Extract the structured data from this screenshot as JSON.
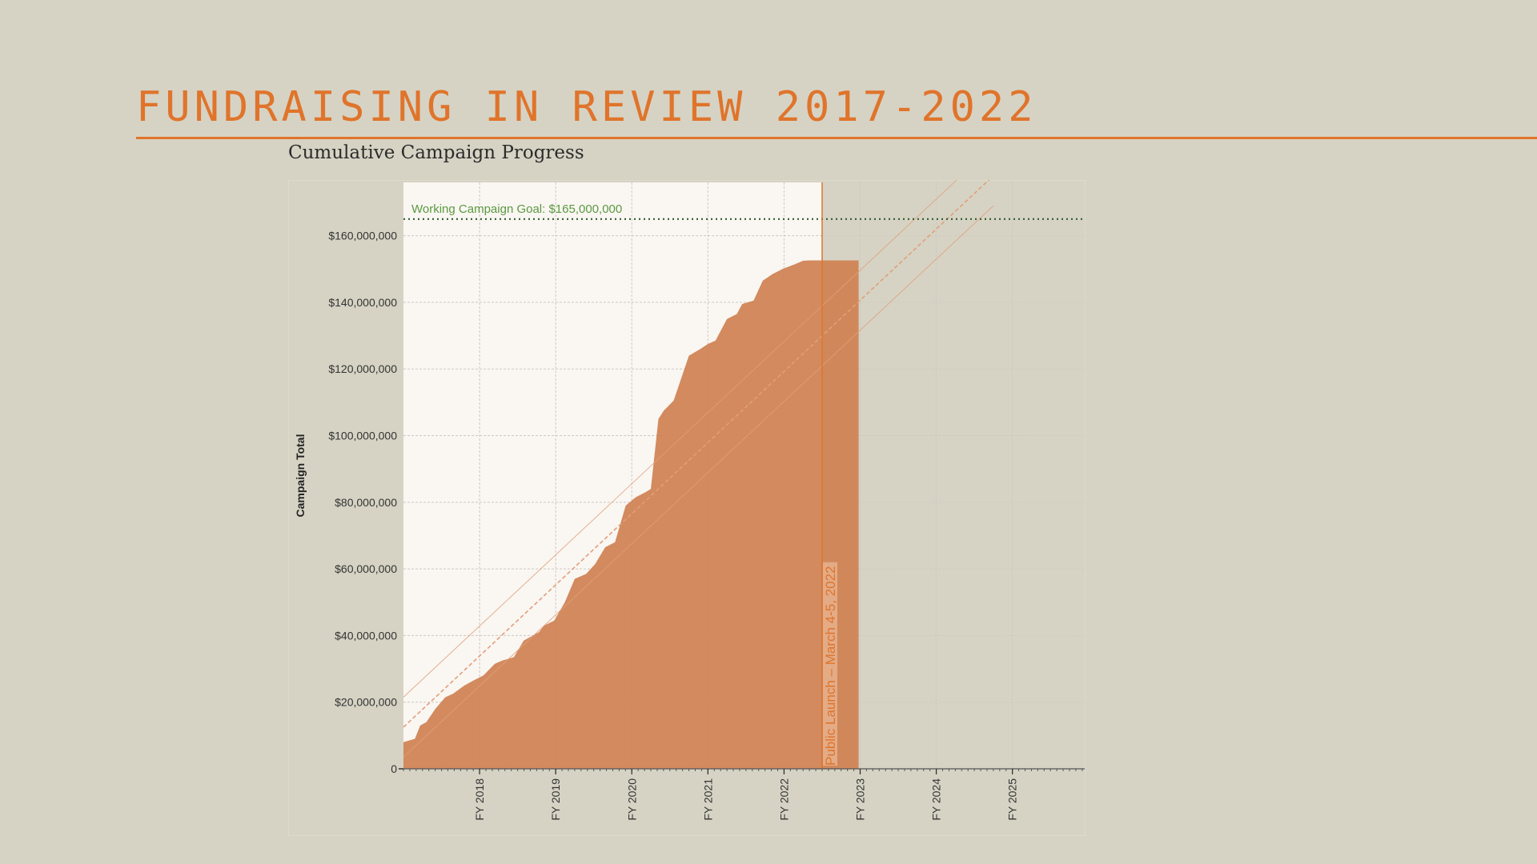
{
  "header": {
    "title": "FUNDRAISING IN REVIEW 2017-2022",
    "subtitle": "Cumulative Campaign Progress"
  },
  "colors": {
    "accent": "#e0742b",
    "area_fill": "#d08455",
    "goal_line": "#2f5a2f",
    "goal_label": "#5a9a40",
    "background": "#d6d3c4",
    "plot_background": "#faf6f2"
  },
  "chart_data": {
    "type": "area",
    "title": "",
    "xlabel": "",
    "ylabel": "Campaign Total",
    "x_ticks": [
      "FY 2018",
      "FY 2019",
      "FY 2020",
      "FY 2021",
      "FY 2022",
      "FY 2023",
      "FY 2024",
      "FY 2025"
    ],
    "y_ticks": [
      "0",
      "$20,000,000",
      "$40,000,000",
      "$60,000,000",
      "$80,000,000",
      "$100,000,000",
      "$120,000,000",
      "$140,000,000",
      "$160,000,000"
    ],
    "xlim": [
      2017.0,
      2025.95
    ],
    "ylim": [
      0,
      176000000
    ],
    "grid": true,
    "goal": {
      "label": "Working Campaign Goal: $165,000,000",
      "value": 165000000
    },
    "public_launch": {
      "label": "Public Launch – March 4-5, 2022",
      "x": 2022.5
    },
    "series": [
      {
        "x": [
          2017.0,
          2017.15,
          2017.22,
          2017.3,
          2017.42,
          2017.55,
          2017.65,
          2017.8,
          2017.92,
          2018.05,
          2018.2,
          2018.3,
          2018.45,
          2018.58,
          2018.78,
          2018.85,
          2018.98,
          2019.12,
          2019.25,
          2019.4,
          2019.52,
          2019.65,
          2019.78,
          2019.92,
          2020.05,
          2020.18,
          2020.25,
          2020.35,
          2020.42,
          2020.55,
          2020.75,
          2020.9,
          2021.0,
          2021.1,
          2021.25,
          2021.38,
          2021.45,
          2021.6,
          2021.72,
          2021.85,
          2021.98,
          2022.15,
          2022.25,
          2022.35,
          2022.45,
          2022.6,
          2022.75,
          2022.88,
          2022.98
        ],
        "values": [
          8000000,
          9000000,
          13000000,
          14000000,
          18000000,
          21500000,
          22500000,
          25000000,
          26500000,
          28000000,
          31500000,
          32500000,
          33500000,
          38500000,
          41000000,
          43000000,
          44500000,
          50000000,
          57000000,
          58500000,
          61500000,
          66500000,
          68000000,
          79000000,
          81500000,
          83000000,
          84000000,
          105000000,
          107500000,
          110500000,
          124000000,
          126000000,
          127500000,
          128500000,
          135000000,
          136500000,
          139500000,
          140500000,
          146500000,
          148500000,
          150000000,
          151500000,
          152500000,
          152600000,
          152600000,
          152600000,
          152600000,
          152600000,
          152600000
        ]
      }
    ],
    "projection": {
      "x": [
        2017.0,
        2024.75
      ],
      "values": [
        12500000,
        178000000
      ],
      "band_offset": 9000000
    }
  }
}
